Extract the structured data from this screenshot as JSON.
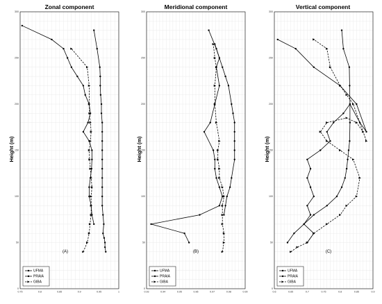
{
  "chart_data": [
    {
      "type": "line",
      "title": "Zonal component",
      "panel_label": "(A)",
      "xlabel": "",
      "ylabel": "Height (m)",
      "xlim": [
        0.75,
        1.0
      ],
      "ylim": [
        0,
        300
      ],
      "xticks": [
        "0.75",
        "0.8",
        "0.85",
        "0.9",
        "0.95",
        "1"
      ],
      "yticks": [
        "0",
        "50",
        "100",
        "150",
        "200",
        "250",
        "300"
      ],
      "grid": true,
      "legend_position": "bottom-left",
      "series": [
        {
          "name": "UFMA",
          "style": "solid",
          "marker": "dot",
          "x": [
            0.967,
            0.965,
            0.965,
            0.963,
            0.96,
            0.962,
            0.96,
            0.958,
            0.958,
            0.958,
            0.958,
            0.958,
            0.958,
            0.958,
            0.958,
            0.958,
            0.958,
            0.956,
            0.956,
            0.954,
            0.953,
            0.953,
            0.952,
            0.945,
            0.937
          ],
          "y": [
            40,
            45,
            50,
            55,
            60,
            70,
            80,
            90,
            100,
            110,
            120,
            130,
            140,
            150,
            160,
            170,
            180,
            190,
            200,
            210,
            220,
            230,
            240,
            260,
            280
          ]
        },
        {
          "name": "PRAIA",
          "style": "solid",
          "marker": "dot",
          "x": [
            0.937,
            0.932,
            0.93,
            0.925,
            0.925,
            0.928,
            0.931,
            0.932,
            0.932,
            0.925,
            0.91,
            0.922,
            0.928,
            0.925,
            0.915,
            0.91,
            0.895,
            0.88,
            0.87,
            0.86,
            0.83,
            0.755
          ],
          "y": [
            70,
            80,
            90,
            100,
            110,
            120,
            130,
            140,
            150,
            160,
            170,
            180,
            190,
            200,
            210,
            220,
            230,
            240,
            250,
            260,
            270,
            285
          ]
        },
        {
          "name": "GIBA",
          "style": "dashed",
          "marker": "triangle",
          "x": [
            0.91,
            0.92,
            0.925,
            0.927,
            0.93,
            0.93,
            0.93,
            0.932,
            0.93,
            0.928,
            0.926,
            0.925,
            0.928,
            0.93,
            0.928,
            0.926,
            0.925,
            0.925,
            0.92,
            0.88
          ],
          "y": [
            40,
            50,
            60,
            70,
            80,
            90,
            100,
            110,
            120,
            130,
            140,
            150,
            160,
            170,
            180,
            190,
            200,
            220,
            240,
            260
          ]
        }
      ]
    },
    {
      "type": "line",
      "title": "Meridional component",
      "panel_label": "(B)",
      "xlabel": "",
      "ylabel": "",
      "xlim": [
        0.93,
        0.995
      ],
      "ylim": [
        0,
        300
      ],
      "xticks": [
        "0.93",
        "0.94",
        "0.95",
        "0.96",
        "0.97",
        "0.98",
        "0.99"
      ],
      "yticks": [
        "0",
        "50",
        "100",
        "150",
        "200",
        "250",
        "300"
      ],
      "grid": true,
      "legend_position": "bottom-left",
      "series": [
        {
          "name": "UFMA",
          "style": "solid",
          "marker": "dot",
          "x": [
            0.981,
            0.982,
            0.983,
            0.985,
            0.986,
            0.988,
            0.988,
            0.988,
            0.988,
            0.988,
            0.987,
            0.986,
            0.984,
            0.982,
            0.98,
            0.976,
            0.971
          ],
          "y": [
            80,
            90,
            100,
            110,
            120,
            140,
            150,
            160,
            170,
            180,
            190,
            200,
            220,
            230,
            240,
            260,
            280
          ]
        },
        {
          "name": "PRAIA",
          "style": "solid",
          "marker": "dot",
          "x": [
            0.958,
            0.955,
            0.933,
            0.965,
            0.978,
            0.98,
            0.978,
            0.976,
            0.975,
            0.975,
            0.974,
            0.968,
            0.972,
            0.975,
            0.978,
            0.976,
            0.978,
            0.975
          ],
          "y": [
            50,
            60,
            70,
            80,
            90,
            100,
            110,
            120,
            130,
            140,
            150,
            170,
            180,
            200,
            220,
            240,
            250,
            265
          ]
        },
        {
          "name": "GIBA",
          "style": "dashed",
          "marker": "triangle",
          "x": [
            0.98,
            0.981,
            0.981,
            0.98,
            0.98,
            0.98,
            0.981,
            0.98,
            0.978,
            0.978,
            0.977,
            0.977,
            0.978,
            0.976,
            0.975,
            0.975,
            0.976,
            0.975,
            0.974
          ],
          "y": [
            40,
            50,
            60,
            70,
            80,
            90,
            100,
            110,
            120,
            130,
            140,
            150,
            160,
            180,
            200,
            220,
            240,
            250,
            265
          ]
        }
      ]
    },
    {
      "type": "line",
      "title": "Vertical component",
      "panel_label": "(C)",
      "xlabel": "",
      "ylabel": "",
      "xlim": [
        0.6,
        0.9
      ],
      "ylim": [
        0,
        300
      ],
      "xticks": [
        "0.6",
        "0.65",
        "0.7",
        "0.75",
        "0.8",
        "0.85",
        "0.9"
      ],
      "yticks": [
        "0",
        "50",
        "100",
        "150",
        "200",
        "250",
        "300"
      ],
      "grid": true,
      "legend_position": "bottom-left",
      "series": [
        {
          "name": "UFMA",
          "style": "solid",
          "marker": "dot",
          "x": [
            0.64,
            0.66,
            0.69,
            0.72,
            0.76,
            0.79,
            0.805,
            0.815,
            0.82,
            0.823,
            0.826,
            0.829,
            0.83,
            0.83,
            0.829,
            0.828,
            0.81,
            0.805
          ],
          "y": [
            50,
            60,
            70,
            80,
            90,
            100,
            110,
            120,
            130,
            140,
            150,
            160,
            180,
            200,
            220,
            240,
            260,
            280
          ]
        },
        {
          "name": "PRAIA",
          "style": "solid",
          "marker": "dot",
          "x": [
            0.7,
            0.72,
            0.69,
            0.71,
            0.7,
            0.72,
            0.71,
            0.7,
            0.71,
            0.7,
            0.74,
            0.77,
            0.76,
            0.78,
            0.81,
            0.83,
            0.86,
            0.88,
            0.85,
            0.8,
            0.72,
            0.665,
            0.61
          ],
          "y": [
            50,
            60,
            70,
            80,
            90,
            100,
            110,
            120,
            130,
            140,
            150,
            160,
            170,
            180,
            190,
            200,
            180,
            170,
            200,
            220,
            240,
            260,
            270
          ]
        },
        {
          "name": "GIBA",
          "style": "dashed",
          "marker": "triangle",
          "x": [
            0.65,
            0.67,
            0.7,
            0.72,
            0.76,
            0.8,
            0.82,
            0.85,
            0.86,
            0.84,
            0.8,
            0.76,
            0.74,
            0.76,
            0.82,
            0.85,
            0.87,
            0.88,
            0.84,
            0.82,
            0.8,
            0.77,
            0.76,
            0.72
          ],
          "y": [
            40,
            45,
            50,
            60,
            70,
            80,
            90,
            100,
            120,
            140,
            150,
            160,
            170,
            180,
            185,
            180,
            170,
            160,
            200,
            210,
            220,
            240,
            260,
            270
          ]
        }
      ]
    }
  ],
  "legend": {
    "items": [
      "UFMA",
      "PRAIA",
      "GIBA"
    ]
  },
  "colors": {
    "line": "#000000",
    "grid": "#e6e6e6",
    "axes": "#000000"
  }
}
